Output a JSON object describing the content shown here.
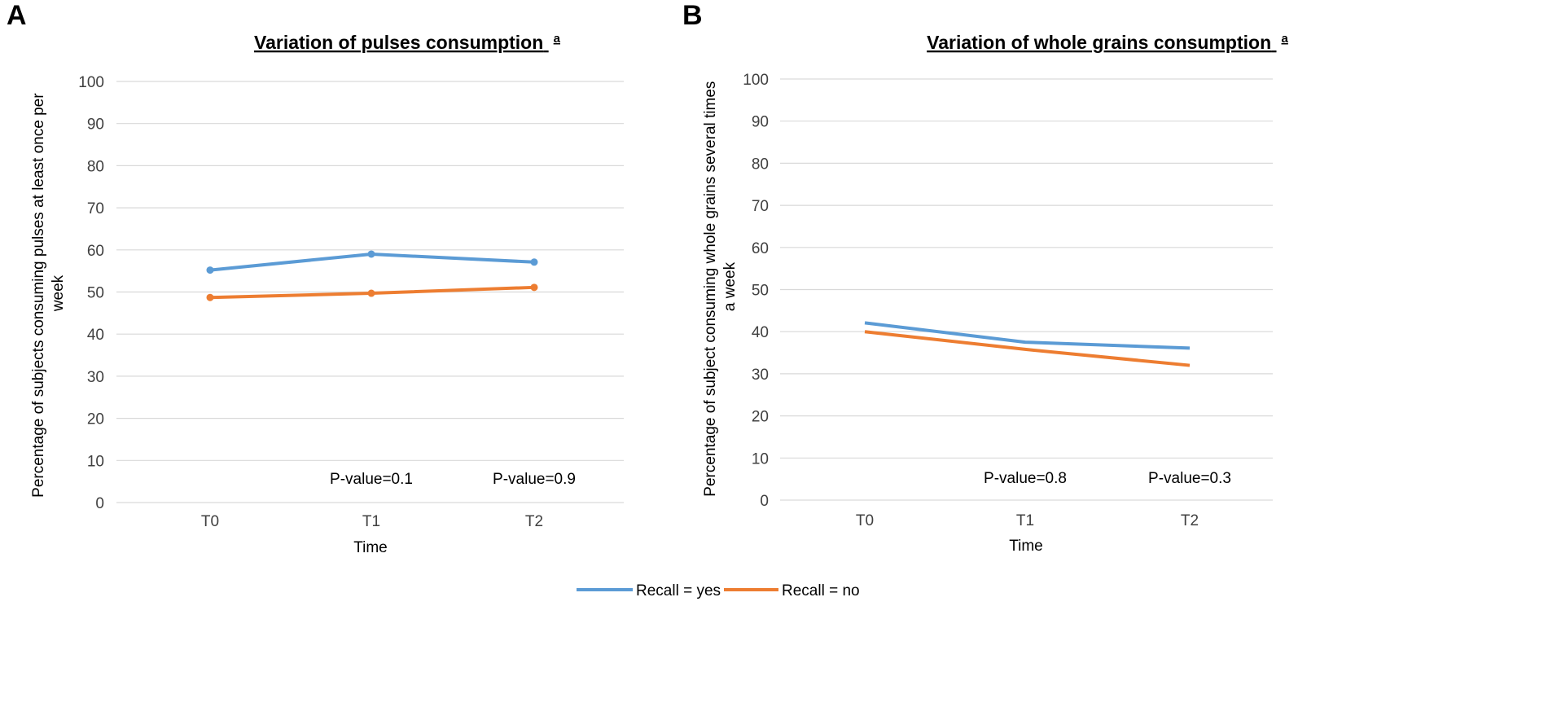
{
  "colors": {
    "series_yes": "#5b9bd5",
    "series_no": "#ed7d31"
  },
  "legend": [
    {
      "label": "Recall = yes",
      "color": "#5b9bd5"
    },
    {
      "label": "Recall = no",
      "color": "#ed7d31"
    }
  ],
  "chart_data": [
    {
      "panel": "A",
      "type": "line",
      "title": "Variation of pulses consumption",
      "title_superscript": "a",
      "xlabel": "Time",
      "ylabel": [
        "Percentage of subjects consuming pulses at least once per",
        "week"
      ],
      "categories": [
        "T0",
        "T1",
        "T2"
      ],
      "ylim": [
        0,
        100
      ],
      "yticks": [
        0,
        10,
        20,
        30,
        40,
        50,
        60,
        70,
        80,
        90,
        100
      ],
      "grid": true,
      "markers": true,
      "series": [
        {
          "name": "Recall = yes",
          "color": "#5b9bd5",
          "values": [
            55.2,
            59.0,
            57.1
          ]
        },
        {
          "name": "Recall = no",
          "color": "#ed7d31",
          "values": [
            48.7,
            49.7,
            51.1
          ]
        }
      ],
      "annotations": [
        {
          "category": "T1",
          "text": "P-value=0.1"
        },
        {
          "category": "T2",
          "text": "P-value=0.9"
        }
      ]
    },
    {
      "panel": "B",
      "type": "line",
      "title": "Variation of whole grains consumption",
      "title_superscript": "a",
      "xlabel": "Time",
      "ylabel": [
        "Percentage of subject consuming whole grains several times",
        "a week"
      ],
      "categories": [
        "T0",
        "T1",
        "T2"
      ],
      "ylim": [
        0,
        100
      ],
      "yticks": [
        0,
        10,
        20,
        30,
        40,
        50,
        60,
        70,
        80,
        90,
        100
      ],
      "grid": true,
      "markers": false,
      "series": [
        {
          "name": "Recall = yes",
          "color": "#5b9bd5",
          "values": [
            42.1,
            37.5,
            36.1
          ]
        },
        {
          "name": "Recall = no",
          "color": "#ed7d31",
          "values": [
            40.0,
            35.8,
            32.0
          ]
        }
      ],
      "annotations": [
        {
          "category": "T1",
          "text": "P-value=0.8"
        },
        {
          "category": "T2",
          "text": "P-value=0.3"
        }
      ]
    }
  ]
}
